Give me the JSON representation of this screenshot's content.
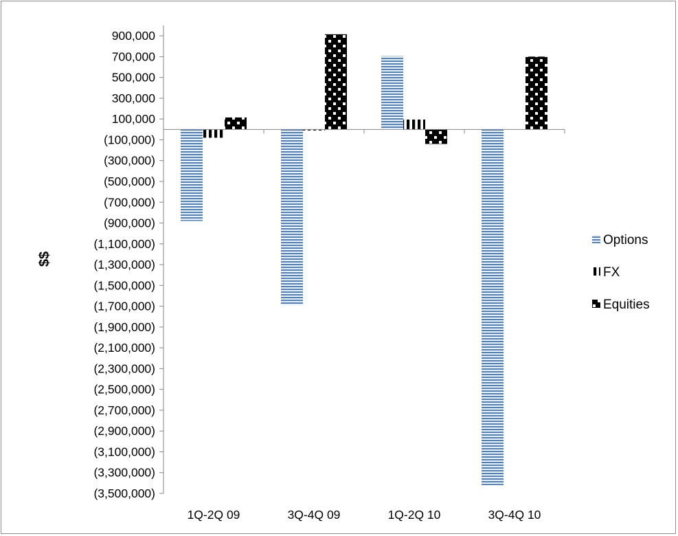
{
  "chart_data": {
    "type": "bar",
    "categories": [
      "1Q-2Q 09",
      "3Q-4Q 09",
      "1Q-2Q 10",
      "3Q-4Q 10"
    ],
    "series": [
      {
        "name": "Options",
        "values": [
          -880000,
          -1690000,
          705000,
          -3420000
        ],
        "color": "#4f81bd",
        "pattern": "horizontal-stripes"
      },
      {
        "name": "FX",
        "values": [
          -80000,
          -10000,
          95000,
          0
        ],
        "color": "#000000",
        "pattern": "vertical-stripes"
      },
      {
        "name": "Equities",
        "values": [
          115000,
          915000,
          -140000,
          700000
        ],
        "color": "#000000",
        "pattern": "dotted"
      }
    ],
    "title": "",
    "xlabel": "",
    "ylabel": "$$",
    "ylim": [
      -3500000,
      1000000
    ],
    "yticks": [
      900000,
      700000,
      500000,
      300000,
      100000,
      -100000,
      -300000,
      -500000,
      -700000,
      -900000,
      -1100000,
      -1300000,
      -1500000,
      -1700000,
      -1900000,
      -2100000,
      -2300000,
      -2500000,
      -2700000,
      -2900000,
      -3100000,
      -3300000,
      -3500000
    ],
    "ytick_labels": [
      "900,000",
      "700,000",
      "500,000",
      "300,000",
      "100,000",
      "(100,000)",
      "(300,000)",
      "(500,000)",
      "(700,000)",
      "(900,000)",
      "(1,100,000)",
      "(1,300,000)",
      "(1,500,000)",
      "(1,700,000)",
      "(1,900,000)",
      "(2,100,000)",
      "(2,300,000)",
      "(2,500,000)",
      "(2,700,000)",
      "(2,900,000)",
      "(3,100,000)",
      "(3,300,000)",
      "(3,500,000)"
    ],
    "grid": false,
    "legend_position": "right"
  }
}
